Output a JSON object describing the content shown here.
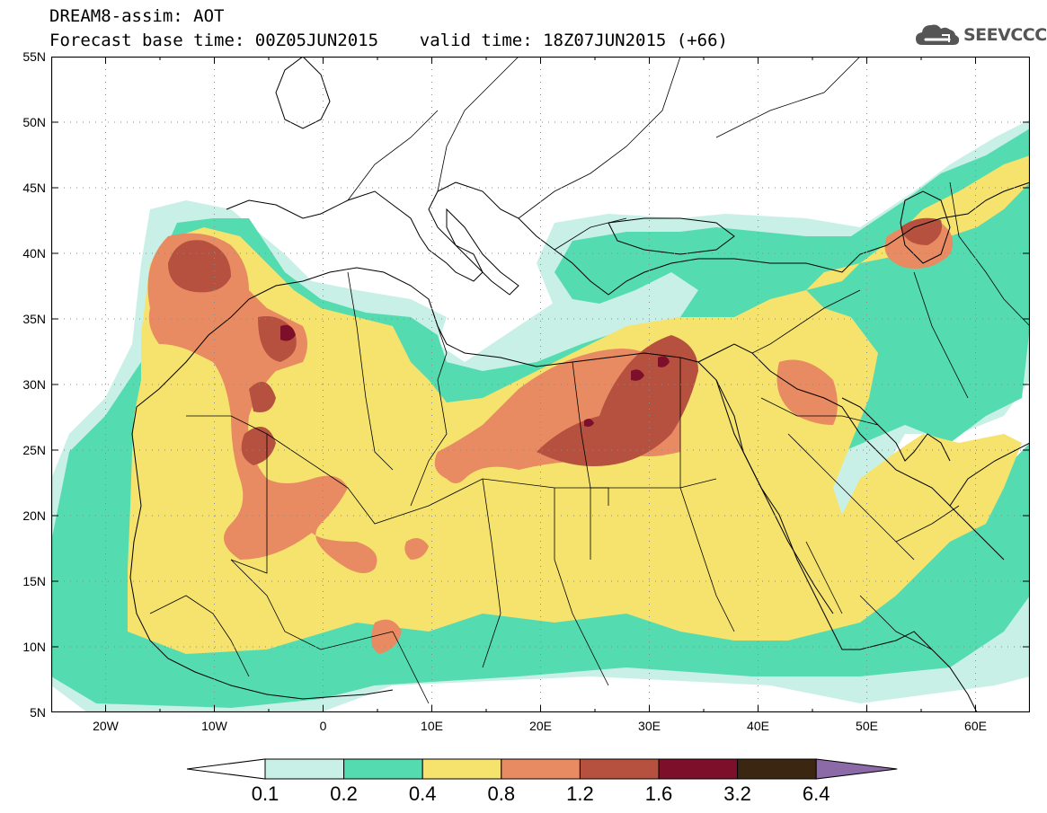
{
  "header": {
    "line1": "DREAM8-assim: AOT",
    "line2": "Forecast base time: 00Z05JUN2015    valid time: 18Z07JUN2015 (+66)"
  },
  "logo": {
    "text": "SEEVCCC",
    "icon": "cloud-icon"
  },
  "map": {
    "lon_range": [
      -25,
      65
    ],
    "lat_range": [
      5,
      55
    ],
    "lat_labels": [
      "55N",
      "50N",
      "45N",
      "40N",
      "35N",
      "30N",
      "25N",
      "20N",
      "15N",
      "10N",
      "5N"
    ],
    "lon_labels": [
      "20W",
      "10W",
      "0",
      "10E",
      "20E",
      "30E",
      "40E",
      "50E",
      "60E"
    ],
    "variable": "AOT",
    "colors": {
      "c0": "#c8f0e6",
      "c1": "#55dbb0",
      "c2": "#f5e36e",
      "c3": "#e88a62",
      "c4": "#b5513e",
      "c5": "#7d0f2a",
      "c6": "#3b2612",
      "c7": "#8c6aa8"
    }
  },
  "colorbar": {
    "labels": [
      "0.1",
      "0.2",
      "0.4",
      "0.8",
      "1.2",
      "1.6",
      "3.2",
      "6.4"
    ]
  }
}
